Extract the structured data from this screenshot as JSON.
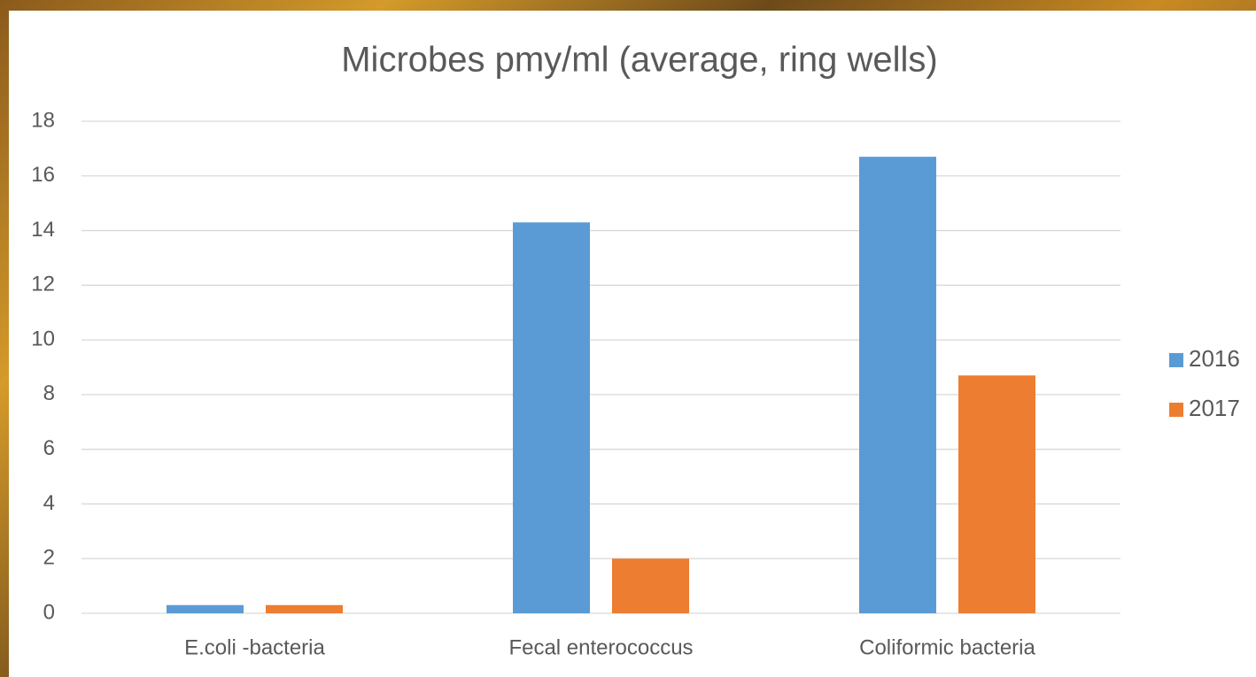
{
  "chart_data": {
    "type": "bar",
    "title": "Microbes pmy/ml (average, ring wells)",
    "categories": [
      "E.coli -bacteria",
      "Fecal enterococcus",
      "Coliformic bacteria"
    ],
    "series": [
      {
        "name": "2016",
        "color": "#5b9bd5",
        "values": [
          0.3,
          14.3,
          16.7
        ]
      },
      {
        "name": "2017",
        "color": "#ed7d31",
        "values": [
          0.3,
          2.0,
          8.7
        ]
      }
    ],
    "ylim": [
      0,
      18
    ],
    "yticks": [
      0,
      2,
      4,
      6,
      8,
      10,
      12,
      14,
      16,
      18
    ],
    "grid": true,
    "legend": "right"
  }
}
